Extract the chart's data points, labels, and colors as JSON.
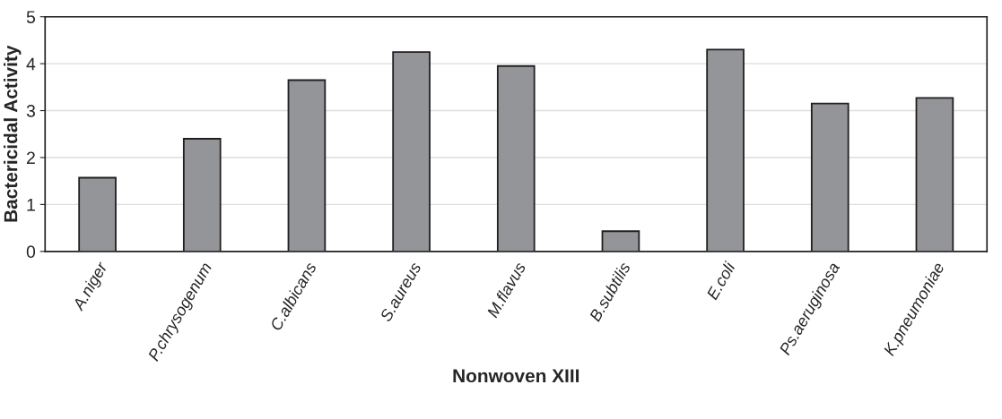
{
  "chart_data": {
    "type": "bar",
    "xlabel": "Nonwoven XIII",
    "ylabel": "Bactericidal Activity",
    "categories": [
      "A.niger",
      "P.chrysogenum",
      "C.albicans",
      "S.aureus",
      "M.flavus",
      "B.subtilis",
      "E.coli",
      "Ps.aeruginosa",
      "K.pneumoniae"
    ],
    "values": [
      1.57,
      2.4,
      3.65,
      4.25,
      3.95,
      0.43,
      4.3,
      3.15,
      3.27
    ],
    "color": "#939598",
    "ylim": [
      0,
      5
    ],
    "yticks": [
      0,
      1,
      2,
      3,
      4,
      5
    ],
    "grid": "y"
  }
}
